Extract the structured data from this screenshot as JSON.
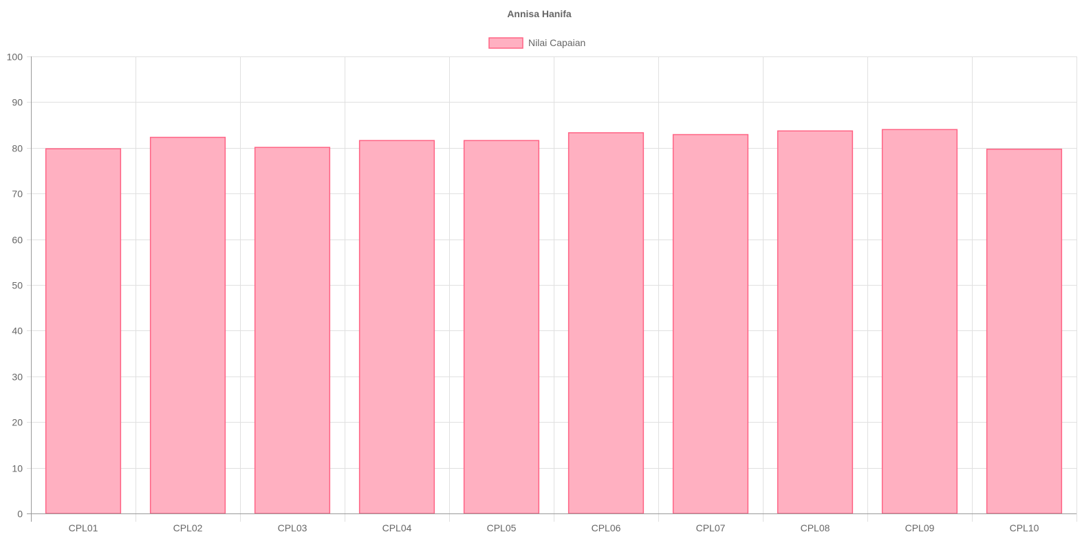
{
  "chart_data": {
    "type": "bar",
    "title": "Annisa Hanifa",
    "legend": {
      "position": "top",
      "entries": [
        "Nilai Capaian"
      ]
    },
    "categories": [
      "CPL01",
      "CPL02",
      "CPL03",
      "CPL04",
      "CPL05",
      "CPL06",
      "CPL07",
      "CPL08",
      "CPL09",
      "CPL10"
    ],
    "series": [
      {
        "name": "Nilai Capaian",
        "values": [
          79.8,
          82.3,
          80.1,
          81.6,
          81.6,
          83.3,
          82.9,
          83.7,
          84.0,
          79.7
        ],
        "fill_color": "#ffb0c1",
        "border_color": "#ff6384"
      }
    ],
    "ylim": [
      0,
      100
    ],
    "yticks": [
      0,
      10,
      20,
      30,
      40,
      50,
      60,
      70,
      80,
      90,
      100
    ],
    "grid": true,
    "colors": {
      "grid": "#e0e0e0",
      "axis": "#999999",
      "text": "#666666"
    }
  }
}
